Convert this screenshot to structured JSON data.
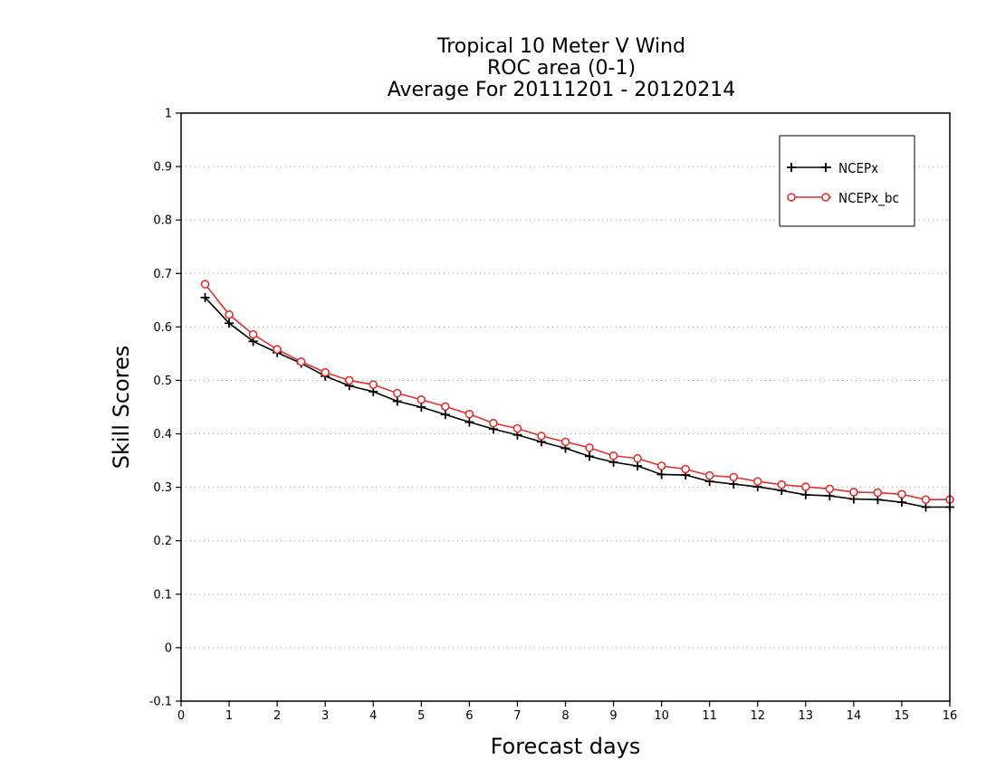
{
  "chart_data": {
    "type": "line",
    "title": [
      "Tropical 10 Meter V Wind",
      "ROC area (0-1)",
      "Average For 20111201 - 20120214"
    ],
    "xlabel": "Forecast days",
    "ylabel": "Skill Scores",
    "xlim": [
      0,
      16
    ],
    "ylim": [
      -0.1,
      1
    ],
    "xticks": [
      0,
      1,
      2,
      3,
      4,
      5,
      6,
      7,
      8,
      9,
      10,
      11,
      12,
      13,
      14,
      15,
      16
    ],
    "yticks": [
      -0.1,
      0,
      0.1,
      0.2,
      0.3,
      0.4,
      0.5,
      0.6,
      0.7,
      0.8,
      0.9,
      1
    ],
    "ytick_labels": [
      "-0.1",
      "0",
      "0.1",
      "0.2",
      "0.3",
      "0.4",
      "0.5",
      "0.6",
      "0.7",
      "0.8",
      "0.9",
      "1"
    ],
    "grid": "horizontal dotted",
    "legend_position": "top-right",
    "x": [
      0.5,
      1,
      1.5,
      2,
      2.5,
      3,
      3.5,
      4,
      4.5,
      5,
      5.5,
      6,
      6.5,
      7,
      7.5,
      8,
      8.5,
      9,
      9.5,
      10,
      10.5,
      11,
      11.5,
      12,
      12.5,
      13,
      13.5,
      14,
      14.5,
      15,
      15.5,
      16
    ],
    "series": [
      {
        "name": "NCEPx",
        "color": "#000000",
        "marker": "plus",
        "values": [
          0.655,
          0.607,
          0.573,
          0.552,
          0.532,
          0.508,
          0.49,
          0.479,
          0.461,
          0.45,
          0.436,
          0.422,
          0.409,
          0.398,
          0.385,
          0.373,
          0.358,
          0.347,
          0.34,
          0.324,
          0.323,
          0.311,
          0.306,
          0.301,
          0.294,
          0.286,
          0.284,
          0.278,
          0.277,
          0.272,
          0.263,
          0.263
        ]
      },
      {
        "name": "NCEPx_bc",
        "color": "#e03030",
        "marker": "circle",
        "values": [
          0.68,
          0.623,
          0.586,
          0.558,
          0.535,
          0.515,
          0.5,
          0.492,
          0.476,
          0.464,
          0.451,
          0.437,
          0.42,
          0.41,
          0.396,
          0.385,
          0.374,
          0.359,
          0.354,
          0.34,
          0.334,
          0.322,
          0.319,
          0.311,
          0.305,
          0.301,
          0.297,
          0.291,
          0.29,
          0.287,
          0.277,
          0.277
        ]
      }
    ]
  }
}
